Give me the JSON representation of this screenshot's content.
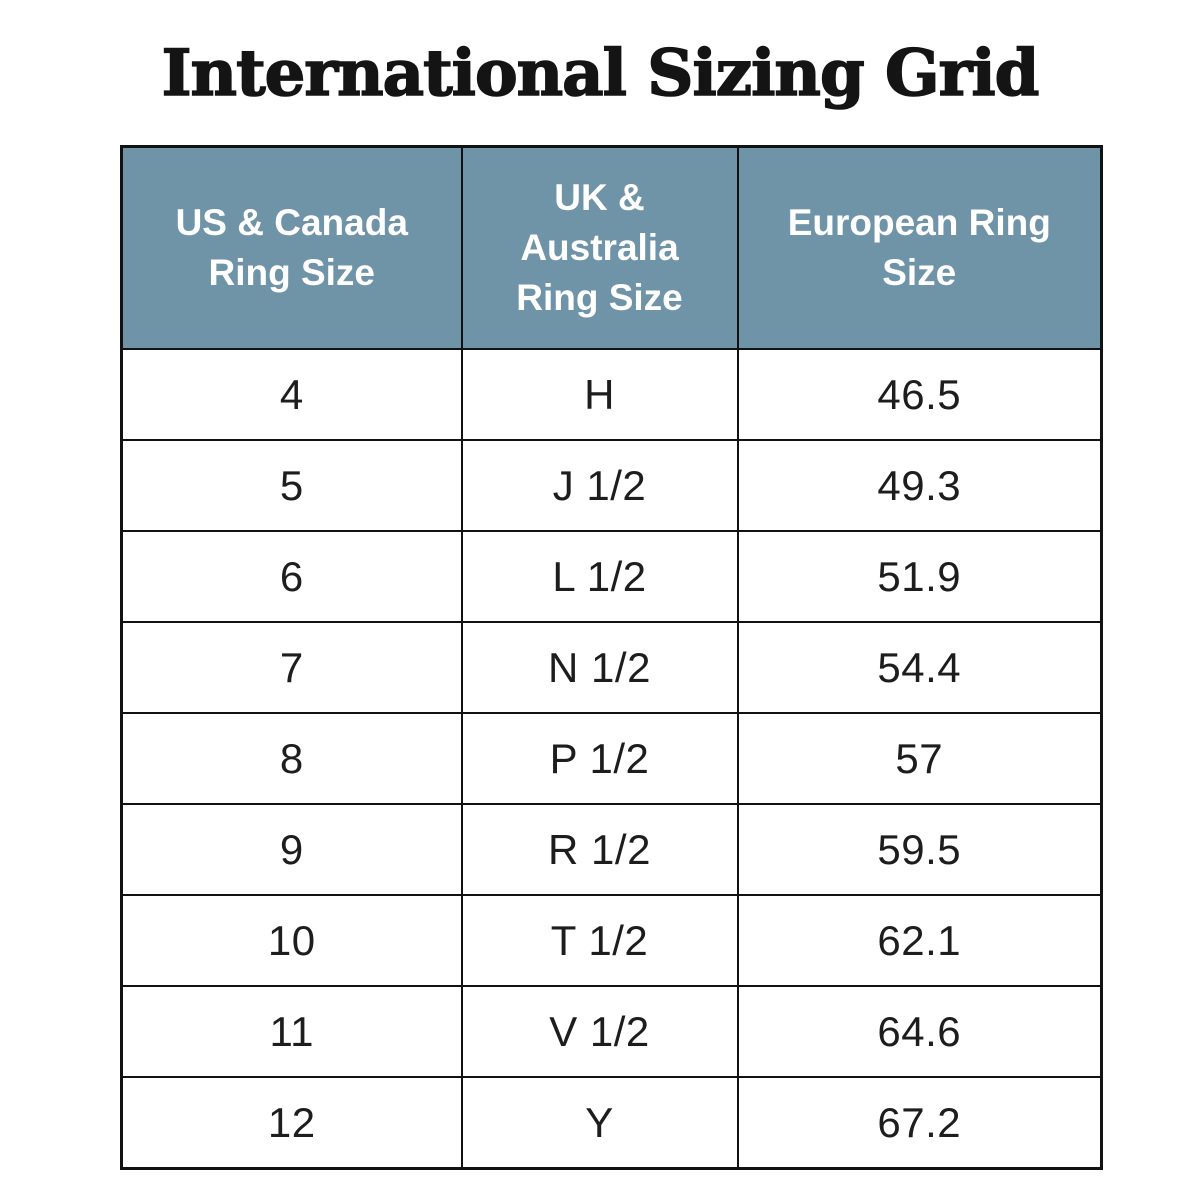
{
  "page": {
    "background": "#FFFFFF"
  },
  "chart_data": {
    "type": "table",
    "title": "International Sizing Grid",
    "columns": [
      "US & Canada Ring Size",
      "UK & Australia Ring Size",
      "European Ring Size"
    ],
    "rows": [
      [
        "4",
        "H",
        "46.5"
      ],
      [
        "5",
        "J 1/2",
        "49.3"
      ],
      [
        "6",
        "L 1/2",
        "51.9"
      ],
      [
        "7",
        "N 1/2",
        "54.4"
      ],
      [
        "8",
        "P 1/2",
        "57"
      ],
      [
        "9",
        "R 1/2",
        "59.5"
      ],
      [
        "10",
        "T 1/2",
        "62.1"
      ],
      [
        "11",
        "V 1/2",
        "64.6"
      ],
      [
        "12",
        "Y",
        "67.2"
      ]
    ]
  },
  "table": {
    "headers": [
      {
        "id": "us-canada",
        "lines": [
          "US & Canada",
          "Ring Size"
        ]
      },
      {
        "id": "uk-australia",
        "lines": [
          "UK &",
          "Australia",
          "Ring Size"
        ]
      },
      {
        "id": "european",
        "lines": [
          "European Ring",
          "Size"
        ]
      }
    ]
  },
  "colors": {
    "header_bg": "#6F94A7",
    "header_text": "#FFFFFF",
    "border": "#121212",
    "title_text": "#141414",
    "cell_text": "#1D1D1D",
    "background": "#FFFFFF"
  }
}
